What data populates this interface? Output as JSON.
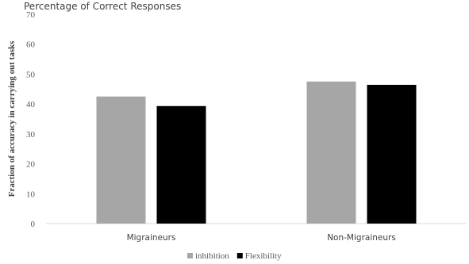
{
  "top_text": "Percentage of Correct Responses",
  "chart_data": {
    "type": "bar",
    "categories": [
      "Migraineurs",
      "Non-Migraineurs"
    ],
    "series": [
      {
        "name": "inhibition",
        "values": [
          42.5,
          47.5
        ],
        "color": "#a6a6a6"
      },
      {
        "name": "Flexibility",
        "values": [
          39.3,
          46.4
        ],
        "color": "#000000"
      }
    ],
    "ylabel": "Fraction of accuracy in carrying out tasks",
    "xlabel": "",
    "ylim": [
      0,
      70
    ],
    "yticks": [
      0,
      10,
      20,
      30,
      40,
      50,
      60,
      70
    ],
    "grid": false,
    "legend": "bottom"
  }
}
